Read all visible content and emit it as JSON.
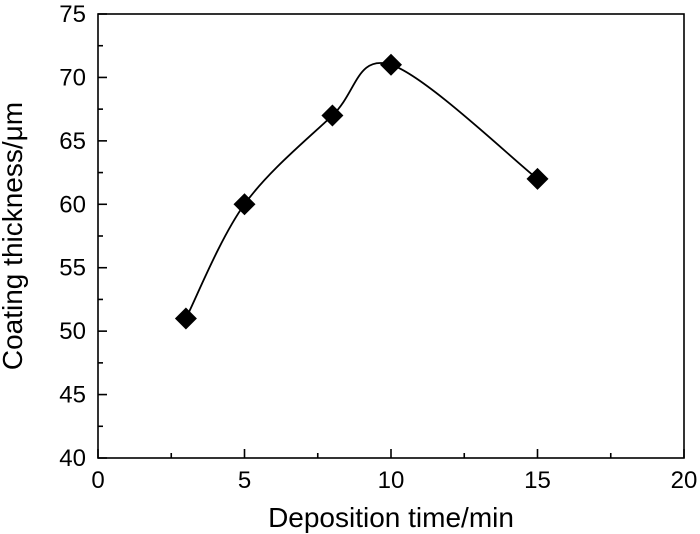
{
  "chart_data": {
    "type": "line",
    "xlabel": "Deposition time/min",
    "ylabel": "Coating thickness/μm",
    "xlim": [
      0,
      20
    ],
    "ylim": [
      40,
      75
    ],
    "x_ticks": [
      0,
      5,
      10,
      15,
      20
    ],
    "y_ticks": [
      40,
      45,
      50,
      55,
      60,
      65,
      70,
      75
    ],
    "grid": false,
    "marker": "diamond",
    "line_style": "smooth",
    "series": [
      {
        "x": [
          3,
          5,
          8,
          10,
          15
        ],
        "y": [
          51,
          60,
          67,
          71,
          62
        ]
      }
    ],
    "colors": {
      "line": "#000000",
      "marker": "#000000",
      "axes": "#000000"
    }
  }
}
